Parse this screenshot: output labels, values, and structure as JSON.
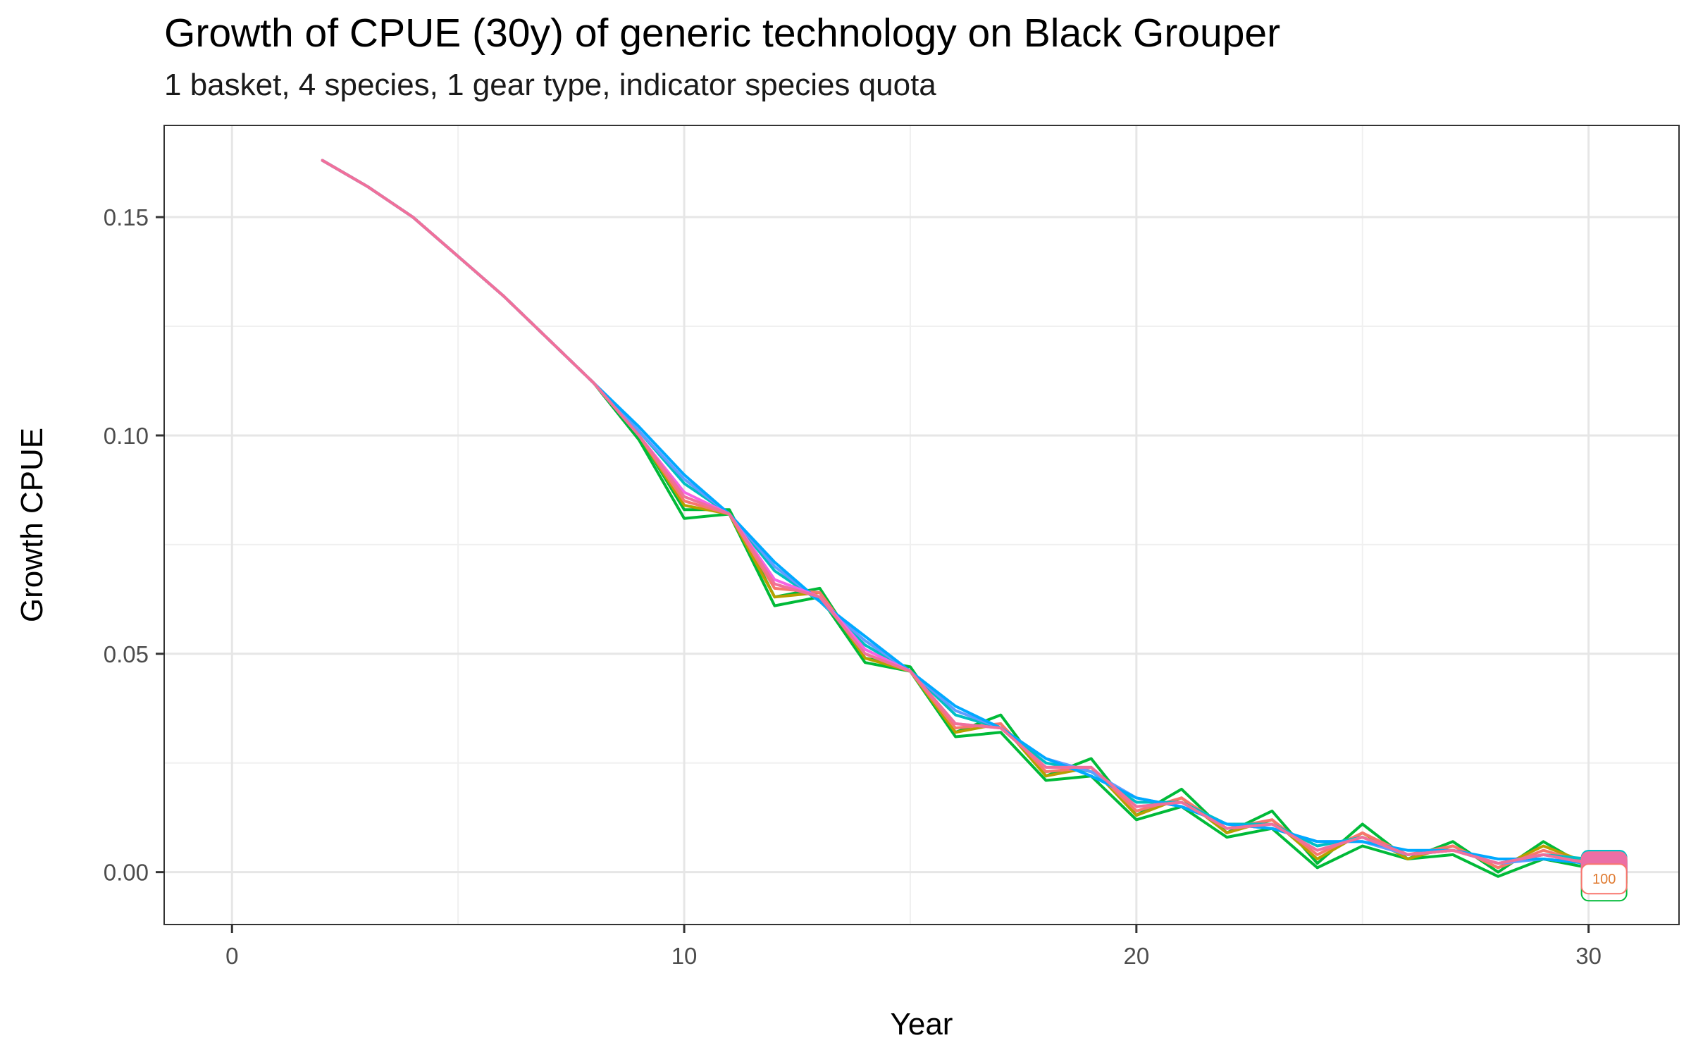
{
  "chart_data": {
    "type": "line",
    "title": "Growth of CPUE (30y) of generic technology on Black Grouper",
    "subtitle": "1 basket, 4 species, 1 gear type, indicator species quota",
    "xlabel": "Year",
    "ylabel": "Growth CPUE",
    "xlim": [
      -1.5,
      32
    ],
    "ylim": [
      -0.012,
      0.171
    ],
    "x_ticks": [
      0,
      10,
      20,
      30
    ],
    "x_tick_labels": [
      "0",
      "10",
      "20",
      "30"
    ],
    "y_ticks": [
      0.0,
      0.05,
      0.1,
      0.15
    ],
    "y_tick_labels": [
      "0.00",
      "0.05",
      "0.10",
      "0.15"
    ],
    "grid": true,
    "legend": "none",
    "end_label": "100",
    "series": [
      {
        "color": "#00BA38",
        "x": [
          2,
          3,
          4,
          5,
          6,
          7,
          8,
          9,
          10,
          11,
          12,
          13,
          14,
          15,
          16,
          17,
          18,
          19,
          20,
          21,
          22,
          23,
          24,
          25,
          26,
          27,
          28,
          29,
          30
        ],
        "y": [
          0.163,
          0.157,
          0.15,
          0.141,
          0.132,
          0.122,
          0.112,
          0.099,
          0.081,
          0.082,
          0.061,
          0.063,
          0.048,
          0.046,
          0.031,
          0.032,
          0.021,
          0.022,
          0.012,
          0.015,
          0.008,
          0.01,
          0.001,
          0.006,
          0.003,
          0.004,
          -0.001,
          0.003,
          0.001
        ]
      },
      {
        "color": "#00BA38",
        "x": [
          2,
          3,
          4,
          5,
          6,
          7,
          8,
          9,
          10,
          11,
          12,
          13,
          14,
          15,
          16,
          17,
          18,
          19,
          20,
          21,
          22,
          23,
          24,
          25,
          26,
          27,
          28,
          29,
          30
        ],
        "y": [
          0.163,
          0.157,
          0.15,
          0.141,
          0.132,
          0.122,
          0.112,
          0.1,
          0.083,
          0.083,
          0.063,
          0.065,
          0.049,
          0.047,
          0.032,
          0.036,
          0.022,
          0.026,
          0.013,
          0.019,
          0.009,
          0.014,
          0.002,
          0.011,
          0.003,
          0.007,
          0.0,
          0.007,
          0.001
        ]
      },
      {
        "color": "#B79F00",
        "x": [
          2,
          3,
          4,
          5,
          6,
          7,
          8,
          9,
          10,
          11,
          12,
          13,
          14,
          15,
          16,
          17,
          18,
          19,
          20,
          21,
          22,
          23,
          24,
          25,
          26,
          27,
          28,
          29,
          30
        ],
        "y": [
          0.163,
          0.157,
          0.15,
          0.141,
          0.132,
          0.122,
          0.112,
          0.1,
          0.084,
          0.082,
          0.063,
          0.064,
          0.049,
          0.046,
          0.032,
          0.034,
          0.022,
          0.024,
          0.013,
          0.017,
          0.009,
          0.012,
          0.003,
          0.009,
          0.003,
          0.006,
          0.001,
          0.006,
          0.002
        ]
      },
      {
        "color": "#F8766D",
        "x": [
          2,
          3,
          4,
          5,
          6,
          7,
          8,
          9,
          10,
          11,
          12,
          13,
          14,
          15,
          16,
          17,
          18,
          19,
          20,
          21,
          22,
          23,
          24,
          25,
          26,
          27,
          28,
          29,
          30
        ],
        "y": [
          0.163,
          0.157,
          0.15,
          0.141,
          0.132,
          0.122,
          0.112,
          0.1,
          0.085,
          0.082,
          0.065,
          0.064,
          0.05,
          0.046,
          0.033,
          0.034,
          0.023,
          0.024,
          0.014,
          0.017,
          0.01,
          0.012,
          0.004,
          0.009,
          0.004,
          0.006,
          0.001,
          0.005,
          0.002
        ]
      },
      {
        "color": "#00BFC4",
        "x": [
          2,
          3,
          4,
          5,
          6,
          7,
          8,
          9,
          10,
          11,
          12,
          13,
          14,
          15,
          16,
          17,
          18,
          19,
          20,
          21,
          22,
          23,
          24,
          25,
          26,
          27,
          28,
          29,
          30
        ],
        "y": [
          0.163,
          0.157,
          0.15,
          0.141,
          0.132,
          0.122,
          0.112,
          0.101,
          0.089,
          0.082,
          0.069,
          0.062,
          0.052,
          0.046,
          0.036,
          0.033,
          0.025,
          0.023,
          0.016,
          0.016,
          0.011,
          0.011,
          0.006,
          0.008,
          0.004,
          0.005,
          0.002,
          0.004,
          0.003
        ]
      },
      {
        "color": "#619CFF",
        "x": [
          2,
          3,
          4,
          5,
          6,
          7,
          8,
          9,
          10,
          11,
          12,
          13,
          14,
          15,
          16,
          17,
          18,
          19,
          20,
          21,
          22,
          23,
          24,
          25,
          26,
          27,
          28,
          29,
          30
        ],
        "y": [
          0.163,
          0.157,
          0.15,
          0.141,
          0.132,
          0.122,
          0.112,
          0.101,
          0.09,
          0.082,
          0.07,
          0.062,
          0.053,
          0.046,
          0.037,
          0.033,
          0.026,
          0.023,
          0.017,
          0.015,
          0.011,
          0.01,
          0.007,
          0.007,
          0.004,
          0.005,
          0.002,
          0.003,
          0.002
        ]
      },
      {
        "color": "#00A9FF",
        "x": [
          2,
          3,
          4,
          5,
          6,
          7,
          8,
          9,
          10,
          11,
          12,
          13,
          14,
          15,
          16,
          17,
          18,
          19,
          20,
          21,
          22,
          23,
          24,
          25,
          26,
          27,
          28,
          29,
          30
        ],
        "y": [
          0.163,
          0.157,
          0.15,
          0.141,
          0.132,
          0.122,
          0.112,
          0.102,
          0.091,
          0.082,
          0.071,
          0.062,
          0.054,
          0.046,
          0.038,
          0.033,
          0.026,
          0.022,
          0.017,
          0.015,
          0.011,
          0.01,
          0.007,
          0.007,
          0.005,
          0.005,
          0.003,
          0.003,
          0.002
        ]
      },
      {
        "color": "#F564E3",
        "x": [
          2,
          3,
          4,
          5,
          6,
          7,
          8,
          9,
          10,
          11,
          12,
          13,
          14,
          15,
          16,
          17,
          18,
          19,
          20,
          21,
          22,
          23,
          24,
          25,
          26,
          27,
          28,
          29,
          30
        ],
        "y": [
          0.163,
          0.157,
          0.15,
          0.141,
          0.132,
          0.122,
          0.112,
          0.1,
          0.087,
          0.082,
          0.067,
          0.063,
          0.051,
          0.046,
          0.034,
          0.033,
          0.024,
          0.024,
          0.015,
          0.016,
          0.01,
          0.011,
          0.005,
          0.008,
          0.004,
          0.005,
          0.002,
          0.004,
          0.002
        ]
      },
      {
        "color": "#F0709A",
        "x": [
          2,
          3,
          4,
          5,
          6,
          7,
          8,
          9,
          10,
          11,
          12,
          13,
          14,
          15,
          16,
          17,
          18,
          19,
          20,
          21,
          22,
          23,
          24,
          25,
          26,
          27,
          28,
          29,
          30
        ],
        "y": [
          0.163,
          0.157,
          0.15,
          0.141,
          0.132,
          0.122,
          0.112,
          0.1,
          0.086,
          0.082,
          0.066,
          0.063,
          0.05,
          0.046,
          0.034,
          0.033,
          0.024,
          0.024,
          0.015,
          0.016,
          0.01,
          0.011,
          0.005,
          0.008,
          0.004,
          0.005,
          0.002,
          0.004,
          0.002
        ]
      }
    ]
  }
}
